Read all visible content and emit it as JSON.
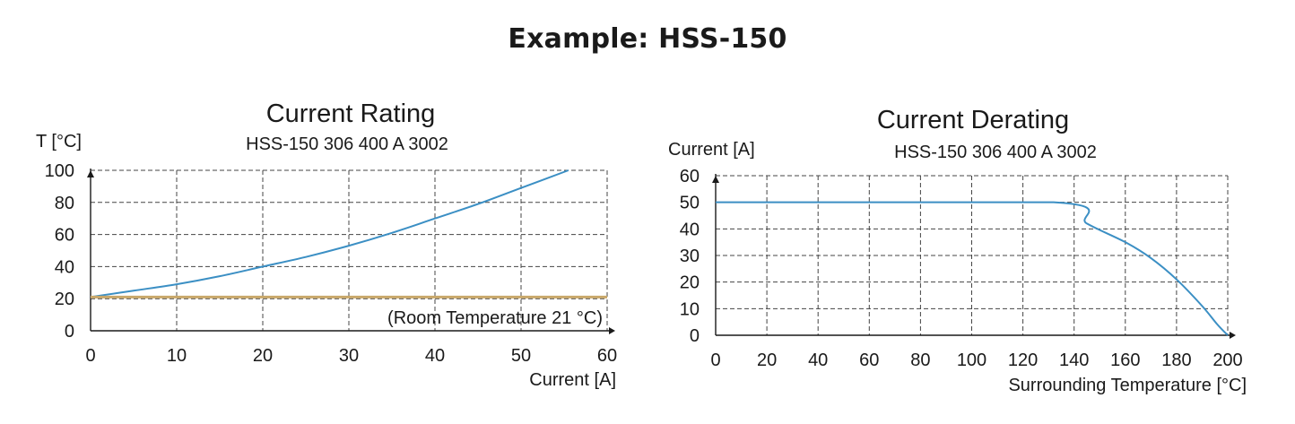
{
  "page": {
    "title": "Example: HSS-150"
  },
  "chart_data": [
    {
      "type": "line",
      "title": "Current Rating",
      "subtitle": "HSS-150 306 400 A 3002",
      "xlabel": "Current [A]",
      "ylabel": "T [°C]",
      "xlim": [
        0,
        60
      ],
      "ylim": [
        0,
        100
      ],
      "xticks": [
        "0",
        "10",
        "20",
        "30",
        "40",
        "50",
        "60"
      ],
      "yticks": [
        "0",
        "20",
        "40",
        "60",
        "80",
        "100"
      ],
      "grid": true,
      "series": [
        {
          "color": "#3b8fc4",
          "x": [
            0,
            5,
            10,
            15,
            20,
            25,
            30,
            35,
            40,
            45,
            50,
            55.5
          ],
          "y": [
            21,
            25,
            29,
            34,
            40,
            46,
            53,
            61,
            70,
            79,
            89,
            100
          ]
        },
        {
          "color": "#c9a86a",
          "x": [
            0,
            60
          ],
          "y": [
            21,
            21
          ]
        }
      ],
      "annotations": [
        {
          "text": "(Room Temperature 21 °C)"
        }
      ]
    },
    {
      "type": "line",
      "title": "Current Derating",
      "subtitle": "HSS-150 306 400 A 3002",
      "xlabel": "Surrounding Temperature [°C]",
      "ylabel": "Current [A]",
      "xlim": [
        0,
        200
      ],
      "ylim": [
        0,
        60
      ],
      "xticks": [
        "0",
        "20",
        "40",
        "60",
        "80",
        "100",
        "120",
        "140",
        "160",
        "180",
        "200"
      ],
      "yticks": [
        "0",
        "10",
        "20",
        "30",
        "40",
        "50",
        "60"
      ],
      "grid": true,
      "series": [
        {
          "color": "#3b8fc4",
          "x": [
            0,
            132,
            145,
            160,
            170,
            180,
            190,
            196,
            200
          ],
          "y": [
            50,
            50,
            42,
            35,
            29,
            21,
            11,
            4,
            0
          ]
        }
      ]
    }
  ]
}
